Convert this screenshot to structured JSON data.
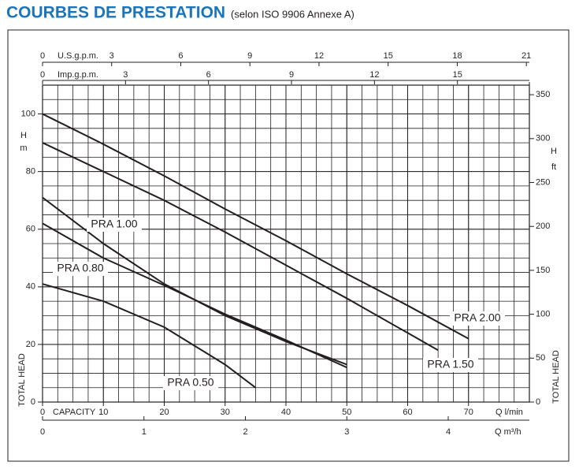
{
  "chart_data": {
    "type": "line",
    "title": "COURBES DE PRESTATION",
    "subtitle": "(selon ISO 9906 Annexe A)",
    "x_label": "CAPACITY",
    "x_unit": "Q l/min",
    "y_label": "TOTAL HEAD",
    "y_unit_h": "H",
    "y_unit": "m",
    "y2_label": "TOTAL HEAD",
    "y2_unit_h": "H",
    "y2_unit": "ft",
    "xlim": [
      0,
      80
    ],
    "xticks": [
      0,
      10,
      20,
      30,
      40,
      50,
      60,
      70
    ],
    "ylim": [
      0,
      110
    ],
    "yticks": [
      0,
      20,
      40,
      60,
      80,
      100
    ],
    "y2lim": [
      0,
      360.9
    ],
    "y2ticks": [
      0,
      50,
      100,
      150,
      200,
      250,
      300,
      350
    ],
    "top_axis_1": {
      "label": "U.S.g.p.m.",
      "lim": [
        0,
        21.13
      ],
      "ticks": [
        0,
        3,
        6,
        9,
        12,
        15,
        18,
        21
      ]
    },
    "top_axis_2": {
      "label": "Imp.g.p.m.",
      "lim": [
        0,
        17.6
      ],
      "ticks": [
        0,
        3,
        6,
        9,
        12,
        15
      ]
    },
    "bottom_axis_2": {
      "label": "Q m³/h",
      "lim": [
        0,
        4.8
      ],
      "ticks": [
        0,
        1,
        2,
        3,
        4
      ]
    },
    "grid": true,
    "series": [
      {
        "name": "PRA 2.00",
        "color": "#231f20",
        "x": [
          0,
          10,
          20,
          30,
          40,
          50,
          60,
          70
        ],
        "values": [
          100,
          89.5,
          78.5,
          67,
          56,
          44.5,
          33.5,
          22
        ]
      },
      {
        "name": "PRA 1.50",
        "color": "#231f20",
        "x": [
          0,
          10,
          20,
          30,
          40,
          50,
          60,
          65
        ],
        "values": [
          90,
          80,
          70,
          59,
          47.5,
          36,
          24,
          18
        ]
      },
      {
        "name": "PRA 1.00",
        "color": "#231f20",
        "x": [
          0,
          10,
          20,
          30,
          40,
          50
        ],
        "values": [
          71,
          55,
          41,
          30,
          21,
          13
        ]
      },
      {
        "name": "PRA 0.80",
        "color": "#231f20",
        "x": [
          0,
          10,
          20,
          30,
          40,
          50
        ],
        "values": [
          62,
          50,
          40.5,
          30.5,
          21.5,
          12
        ]
      },
      {
        "name": "PRA 0.50",
        "color": "#231f20",
        "x": [
          0,
          10,
          20,
          30,
          35
        ],
        "values": [
          41,
          35,
          26,
          13,
          5
        ]
      }
    ]
  }
}
